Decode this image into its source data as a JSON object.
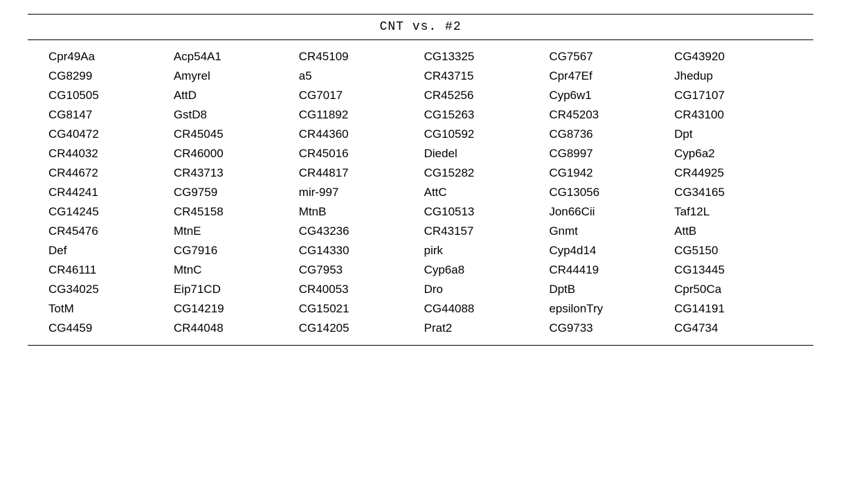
{
  "table": {
    "type": "table",
    "title": "CNT  vs. #2",
    "title_font": "monospace",
    "title_fontsize": 18,
    "cell_fontsize": 17,
    "text_color": "#000000",
    "background_color": "#ffffff",
    "border_color": "#000000",
    "border_top_width": 1.5,
    "border_mid_width": 1.0,
    "border_bottom_width": 1.5,
    "num_columns": 6,
    "rows": [
      [
        "Cpr49Aa",
        "Acp54A1",
        "CR45109",
        "CG13325",
        "CG7567",
        "CG43920"
      ],
      [
        "CG8299",
        "Amyrel",
        "a5",
        "CR43715",
        "Cpr47Ef",
        "Jhedup"
      ],
      [
        "CG10505",
        "AttD",
        "CG7017",
        "CR45256",
        "Cyp6w1",
        "CG17107"
      ],
      [
        "CG8147",
        "GstD8",
        "CG11892",
        "CG15263",
        "CR45203",
        "CR43100"
      ],
      [
        "CG40472",
        "CR45045",
        "CR44360",
        "CG10592",
        "CG8736",
        "Dpt"
      ],
      [
        "CR44032",
        "CR46000",
        "CR45016",
        "Diedel",
        "CG8997",
        "Cyp6a2"
      ],
      [
        "CR44672",
        "CR43713",
        "CR44817",
        "CG15282",
        "CG1942",
        "CR44925"
      ],
      [
        "CR44241",
        "CG9759",
        "mir-997",
        "AttC",
        "CG13056",
        "CG34165"
      ],
      [
        "CG14245",
        "CR45158",
        "MtnB",
        "CG10513",
        "Jon66Cii",
        "Taf12L"
      ],
      [
        "CR45476",
        "MtnE",
        "CG43236",
        "CR43157",
        "Gnmt",
        "AttB"
      ],
      [
        "Def",
        "CG7916",
        "CG14330",
        "pirk",
        "Cyp4d14",
        "CG5150"
      ],
      [
        "CR46111",
        "MtnC",
        "CG7953",
        "Cyp6a8",
        "CR44419",
        "CG13445"
      ],
      [
        "CG34025",
        "Eip71CD",
        "CR40053",
        "Dro",
        "DptB",
        "Cpr50Ca"
      ],
      [
        "TotM",
        "CG14219",
        "CG15021",
        "CG44088",
        "epsilonTry",
        "CG14191"
      ],
      [
        "CG4459",
        "CR44048",
        "CG14205",
        "Prat2",
        "CG9733",
        "CG4734"
      ]
    ]
  }
}
